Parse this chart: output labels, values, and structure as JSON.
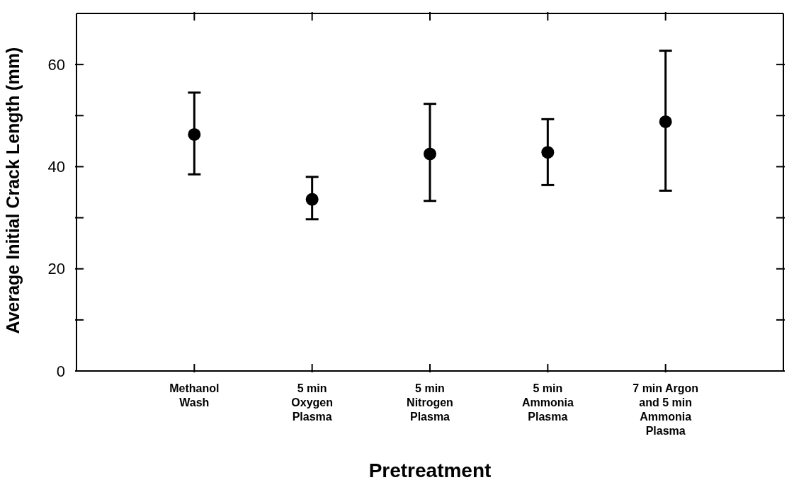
{
  "chart_data": {
    "type": "scatter",
    "xlabel": "Pretreatment",
    "ylabel": "Average Initial Crack Length (mm)",
    "categories": [
      "Methanol\nWash",
      "5 min\nOxygen\nPlasma",
      "5 min\nNitrogen\nPlasma",
      "5 min\nAmmonia\nPlasma",
      "7 min Argon\nand 5 min\nAmmonia\nPlasma"
    ],
    "series": [
      {
        "color": "#000000",
        "values": [
          46.3,
          33.6,
          42.5,
          42.8,
          48.8
        ],
        "errors": [
          [
            38.5,
            54.5
          ],
          [
            29.7,
            38.0
          ],
          [
            33.3,
            52.3
          ],
          [
            36.4,
            49.3
          ],
          [
            35.3,
            62.7
          ]
        ]
      }
    ],
    "ylim": [
      0,
      70
    ],
    "yticks": [
      0,
      {
        "value": 10,
        "label": null
      },
      20,
      {
        "value": 30,
        "label": null
      },
      40,
      {
        "value": 50,
        "label": null
      },
      60
    ],
    "marker": "circle",
    "grid": false
  }
}
